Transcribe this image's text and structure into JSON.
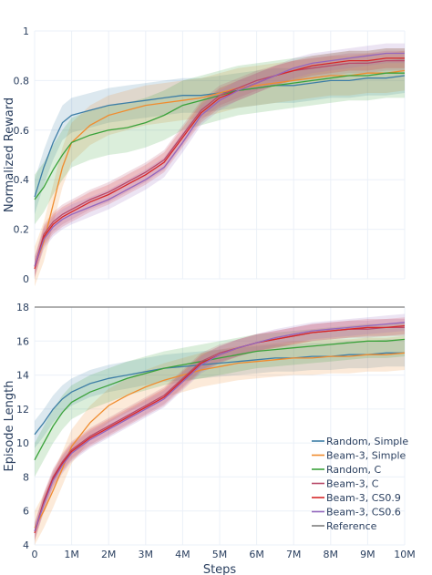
{
  "colors": {
    "Random, Simple": "#3d7ea6",
    "Beam-3, Simple": "#f08c2e",
    "Random, C": "#3aa23a",
    "Beam-3, C": "#b84a6a",
    "Beam-3, CS0.9": "#d62728",
    "Beam-3, CS0.6": "#9467bd",
    "Reference": "#7f7f7f"
  },
  "chart_data": [
    {
      "type": "line",
      "ylabel": "Normalized Reward",
      "xlabel": "",
      "xlim": [
        0,
        10
      ],
      "ylim": [
        0,
        1
      ],
      "x_tick_labels": [],
      "y_ticks": [
        0,
        0.2,
        0.4,
        0.6,
        0.8,
        1
      ],
      "y_tick_labels": [
        "0",
        "0.2",
        "0.4",
        "0.6",
        "0.8",
        "1"
      ],
      "grid": true,
      "x": [
        0,
        0.25,
        0.5,
        0.75,
        1,
        1.5,
        2,
        2.5,
        3,
        3.5,
        4,
        4.5,
        5,
        5.5,
        6,
        6.5,
        7,
        7.5,
        8,
        8.5,
        9,
        9.5,
        10
      ],
      "series": [
        {
          "name": "Random, Simple",
          "values": [
            0.33,
            0.45,
            0.55,
            0.63,
            0.66,
            0.68,
            0.7,
            0.71,
            0.72,
            0.73,
            0.74,
            0.74,
            0.75,
            0.76,
            0.77,
            0.78,
            0.78,
            0.79,
            0.8,
            0.8,
            0.81,
            0.81,
            0.82
          ],
          "band": 0.07
        },
        {
          "name": "Beam-3, Simple",
          "values": [
            0.05,
            0.15,
            0.3,
            0.45,
            0.55,
            0.62,
            0.66,
            0.68,
            0.7,
            0.71,
            0.72,
            0.73,
            0.75,
            0.77,
            0.78,
            0.79,
            0.8,
            0.81,
            0.82,
            0.82,
            0.83,
            0.83,
            0.84
          ],
          "band": 0.08
        },
        {
          "name": "Random, C",
          "values": [
            0.32,
            0.37,
            0.44,
            0.5,
            0.55,
            0.58,
            0.6,
            0.61,
            0.63,
            0.66,
            0.7,
            0.72,
            0.74,
            0.76,
            0.77,
            0.78,
            0.79,
            0.8,
            0.81,
            0.82,
            0.82,
            0.83,
            0.83
          ],
          "band": 0.1
        },
        {
          "name": "Beam-3, C",
          "values": [
            0.05,
            0.18,
            0.23,
            0.26,
            0.28,
            0.32,
            0.35,
            0.39,
            0.43,
            0.48,
            0.58,
            0.68,
            0.74,
            0.77,
            0.8,
            0.82,
            0.84,
            0.85,
            0.86,
            0.87,
            0.87,
            0.88,
            0.88
          ],
          "band": 0.04
        },
        {
          "name": "Beam-3, CS0.9",
          "values": [
            0.04,
            0.17,
            0.22,
            0.25,
            0.27,
            0.31,
            0.34,
            0.38,
            0.42,
            0.47,
            0.57,
            0.67,
            0.73,
            0.76,
            0.79,
            0.82,
            0.84,
            0.86,
            0.87,
            0.88,
            0.88,
            0.89,
            0.89
          ],
          "band": 0.04
        },
        {
          "name": "Beam-3, CS0.6",
          "values": [
            0.05,
            0.16,
            0.21,
            0.24,
            0.26,
            0.29,
            0.32,
            0.36,
            0.4,
            0.45,
            0.55,
            0.66,
            0.72,
            0.76,
            0.79,
            0.82,
            0.85,
            0.87,
            0.88,
            0.89,
            0.9,
            0.91,
            0.91
          ],
          "band": 0.04
        }
      ]
    },
    {
      "type": "line",
      "ylabel": "Episode Length",
      "xlabel": "Steps",
      "xlim": [
        0,
        10
      ],
      "ylim": [
        4,
        18
      ],
      "x_ticks": [
        0,
        1,
        2,
        3,
        4,
        5,
        6,
        7,
        8,
        9,
        10
      ],
      "x_tick_labels": [
        "0",
        "1M",
        "2M",
        "3M",
        "4M",
        "5M",
        "6M",
        "7M",
        "8M",
        "9M",
        "10M"
      ],
      "y_ticks": [
        4,
        6,
        8,
        10,
        12,
        14,
        16,
        18
      ],
      "y_tick_labels": [
        "4",
        "6",
        "8",
        "10",
        "12",
        "14",
        "16",
        "18"
      ],
      "grid": true,
      "legend_position": "bottom-right",
      "x": [
        0,
        0.25,
        0.5,
        0.75,
        1,
        1.5,
        2,
        2.5,
        3,
        3.5,
        4,
        4.5,
        5,
        5.5,
        6,
        6.5,
        7,
        7.5,
        8,
        8.5,
        9,
        9.5,
        10
      ],
      "series": [
        {
          "name": "Random, Simple",
          "values": [
            10.5,
            11.2,
            12.0,
            12.6,
            13.0,
            13.5,
            13.8,
            14.0,
            14.2,
            14.4,
            14.5,
            14.6,
            14.7,
            14.8,
            14.9,
            15.0,
            15.0,
            15.1,
            15.1,
            15.2,
            15.2,
            15.3,
            15.3
          ],
          "band": 0.8
        },
        {
          "name": "Beam-3, Simple",
          "values": [
            5.0,
            6.0,
            7.2,
            8.5,
            9.8,
            11.2,
            12.2,
            12.8,
            13.3,
            13.7,
            14.0,
            14.3,
            14.5,
            14.7,
            14.8,
            14.9,
            15.0,
            15.0,
            15.1,
            15.1,
            15.2,
            15.2,
            15.3
          ],
          "band": 1.0
        },
        {
          "name": "Random, C",
          "values": [
            9.0,
            10.0,
            11.0,
            11.8,
            12.4,
            13.0,
            13.4,
            13.8,
            14.1,
            14.4,
            14.6,
            14.8,
            15.0,
            15.2,
            15.4,
            15.5,
            15.6,
            15.7,
            15.8,
            15.9,
            16.0,
            16.0,
            16.1
          ],
          "band": 1.0
        },
        {
          "name": "Beam-3, C",
          "values": [
            4.8,
            6.6,
            8.0,
            8.9,
            9.6,
            10.4,
            11.0,
            11.6,
            12.2,
            12.8,
            13.8,
            14.8,
            15.3,
            15.6,
            15.9,
            16.1,
            16.3,
            16.5,
            16.6,
            16.7,
            16.7,
            16.8,
            16.8
          ],
          "band": 0.5
        },
        {
          "name": "Beam-3, CS0.9",
          "values": [
            4.7,
            6.5,
            7.9,
            8.8,
            9.5,
            10.3,
            10.9,
            11.5,
            12.1,
            12.7,
            13.7,
            14.7,
            15.2,
            15.6,
            15.9,
            16.1,
            16.3,
            16.5,
            16.6,
            16.7,
            16.8,
            16.8,
            16.9
          ],
          "band": 0.5
        },
        {
          "name": "Beam-3, CS0.6",
          "values": [
            4.8,
            6.4,
            7.8,
            8.7,
            9.4,
            10.2,
            10.8,
            11.4,
            12.0,
            12.6,
            13.6,
            14.6,
            15.2,
            15.6,
            15.9,
            16.2,
            16.4,
            16.6,
            16.7,
            16.8,
            16.9,
            17.0,
            17.1
          ],
          "band": 0.5
        }
      ],
      "reference": {
        "name": "Reference",
        "value": 18
      }
    }
  ],
  "legend": [
    "Random, Simple",
    "Beam-3, Simple",
    "Random, C",
    "Beam-3, C",
    "Beam-3, CS0.9",
    "Beam-3, CS0.6",
    "Reference"
  ]
}
